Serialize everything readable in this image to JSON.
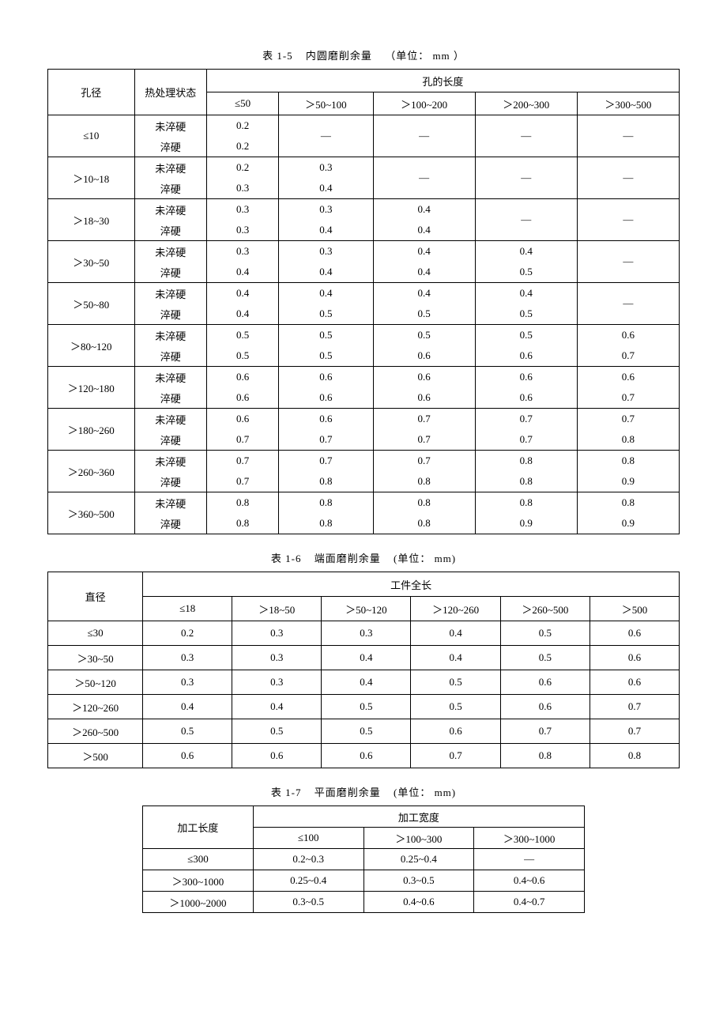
{
  "t15": {
    "caption_prefix": "表 1-5",
    "caption_title": "内圆磨削余量",
    "caption_unit": "（单位： mm ）",
    "h_diameter": "孔径",
    "h_state": "热处理状态",
    "h_length": "孔的长度",
    "cols": [
      "≤50",
      "＞50~100",
      "＞100~200",
      "＞200~300",
      "＞300~500"
    ],
    "state_a": "未淬硬",
    "state_b": "淬硬",
    "dash": "—",
    "rows": [
      {
        "dia": "≤10",
        "a": [
          "0.2",
          "—",
          "—",
          "—",
          "—"
        ],
        "b": [
          "0.2",
          "—",
          "—",
          "—",
          "—"
        ]
      },
      {
        "dia": "＞10~18",
        "a": [
          "0.2",
          "0.3",
          "—",
          "—",
          "—"
        ],
        "b": [
          "0.3",
          "0.4",
          "—",
          "—",
          "—"
        ]
      },
      {
        "dia": "＞18~30",
        "a": [
          "0.3",
          "0.3",
          "0.4",
          "—",
          "—"
        ],
        "b": [
          "0.3",
          "0.4",
          "0.4",
          "—",
          "—"
        ]
      },
      {
        "dia": "＞30~50",
        "a": [
          "0.3",
          "0.3",
          "0.4",
          "0.4",
          "—"
        ],
        "b": [
          "0.4",
          "0.4",
          "0.4",
          "0.5",
          "—"
        ]
      },
      {
        "dia": "＞50~80",
        "a": [
          "0.4",
          "0.4",
          "0.4",
          "0.4",
          "—"
        ],
        "b": [
          "0.4",
          "0.5",
          "0.5",
          "0.5",
          "—"
        ]
      },
      {
        "dia": "＞80~120",
        "a": [
          "0.5",
          "0.5",
          "0.5",
          "0.5",
          "0.6"
        ],
        "b": [
          "0.5",
          "0.5",
          "0.6",
          "0.6",
          "0.7"
        ]
      },
      {
        "dia": "＞120~180",
        "a": [
          "0.6",
          "0.6",
          "0.6",
          "0.6",
          "0.6"
        ],
        "b": [
          "0.6",
          "0.6",
          "0.6",
          "0.6",
          "0.7"
        ]
      },
      {
        "dia": "＞180~260",
        "a": [
          "0.6",
          "0.6",
          "0.7",
          "0.7",
          "0.7"
        ],
        "b": [
          "0.7",
          "0.7",
          "0.7",
          "0.7",
          "0.8"
        ]
      },
      {
        "dia": "＞260~360",
        "a": [
          "0.7",
          "0.7",
          "0.7",
          "0.8",
          "0.8"
        ],
        "b": [
          "0.7",
          "0.8",
          "0.8",
          "0.8",
          "0.9"
        ]
      },
      {
        "dia": "＞360~500",
        "a": [
          "0.8",
          "0.8",
          "0.8",
          "0.8",
          "0.8"
        ],
        "b": [
          "0.8",
          "0.8",
          "0.8",
          "0.9",
          "0.9"
        ]
      }
    ]
  },
  "t16": {
    "caption_prefix": "表 1-6",
    "caption_title": "端面磨削余量",
    "caption_unit": "(单位： mm)",
    "h_diameter": "直径",
    "h_length": "工件全长",
    "cols": [
      "≤18",
      "＞18~50",
      "＞50~120",
      "＞120~260",
      "＞260~500",
      "＞500"
    ],
    "rows": [
      {
        "dia": "≤30",
        "v": [
          "0.2",
          "0.3",
          "0.3",
          "0.4",
          "0.5",
          "0.6"
        ]
      },
      {
        "dia": "＞30~50",
        "v": [
          "0.3",
          "0.3",
          "0.4",
          "0.4",
          "0.5",
          "0.6"
        ]
      },
      {
        "dia": "＞50~120",
        "v": [
          "0.3",
          "0.3",
          "0.4",
          "0.5",
          "0.6",
          "0.6"
        ]
      },
      {
        "dia": "＞120~260",
        "v": [
          "0.4",
          "0.4",
          "0.5",
          "0.5",
          "0.6",
          "0.7"
        ]
      },
      {
        "dia": "＞260~500",
        "v": [
          "0.5",
          "0.5",
          "0.5",
          "0.6",
          "0.7",
          "0.7"
        ]
      },
      {
        "dia": "＞500",
        "v": [
          "0.6",
          "0.6",
          "0.6",
          "0.7",
          "0.8",
          "0.8"
        ]
      }
    ]
  },
  "t17": {
    "caption_prefix": "表 1-7",
    "caption_title": "平面磨削余量",
    "caption_unit": "(单位： mm)",
    "h_length": "加工长度",
    "h_width": "加工宽度",
    "cols": [
      "≤100",
      "＞100~300",
      "＞300~1000"
    ],
    "rows": [
      {
        "len": "≤300",
        "v": [
          "0.2~0.3",
          "0.25~0.4",
          "—"
        ]
      },
      {
        "len": "＞300~1000",
        "v": [
          "0.25~0.4",
          "0.3~0.5",
          "0.4~0.6"
        ]
      },
      {
        "len": "＞1000~2000",
        "v": [
          "0.3~0.5",
          "0.4~0.6",
          "0.4~0.7"
        ]
      }
    ]
  }
}
